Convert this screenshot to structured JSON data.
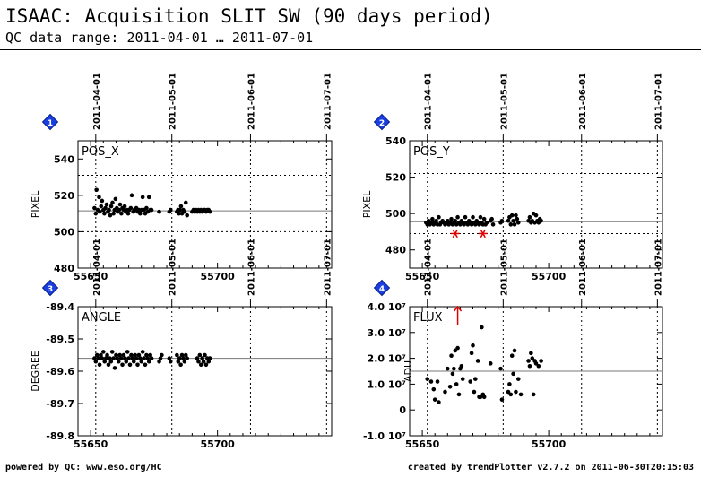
{
  "header": {
    "title": "ISAAC: Acquisition SLIT SW (90 days period)",
    "subtitle": "QC data range: 2011-04-01 … 2011-07-01"
  },
  "footer": {
    "left": "powered by QC: www.eso.org/HC",
    "right": "created by trendPlotter v2.7.2 on 2011-06-30T20:15:03"
  },
  "colors": {
    "axis": "#000000",
    "ref_line": "#777777",
    "outlier": "#e00000",
    "badge": "#1a3fe0",
    "arrow": "#e00000"
  },
  "chart_data": [
    {
      "type": "scatter",
      "panel_number": "1",
      "label": "POS_X",
      "ylabel": "PIXEL",
      "xlim": [
        55645,
        55745
      ],
      "ylim": [
        480,
        550
      ],
      "xticks": [
        55650,
        55700
      ],
      "xtick_labels": [
        "55650",
        "55700"
      ],
      "yticks": [
        480,
        500,
        520,
        540
      ],
      "ytick_labels": [
        "480",
        "500",
        "520",
        "540"
      ],
      "date_labels": [
        "2011-04-01",
        "2011-05-01",
        "2011-06-01",
        "2011-07-01"
      ],
      "date_mjd": [
        55652,
        55682,
        55713,
        55743
      ],
      "ref_line": 511.5,
      "thresholds": [
        500,
        531
      ],
      "points": [
        [
          55651.5,
          513
        ],
        [
          55652,
          510
        ],
        [
          55652.3,
          523
        ],
        [
          55652.8,
          512
        ],
        [
          55653.3,
          519
        ],
        [
          55653.6,
          511
        ],
        [
          55654.1,
          514
        ],
        [
          55654.5,
          517
        ],
        [
          55655,
          512
        ],
        [
          55655.4,
          510
        ],
        [
          55655.8,
          513
        ],
        [
          55656.3,
          515
        ],
        [
          55656.8,
          511
        ],
        [
          55657.2,
          512
        ],
        [
          55657.7,
          509
        ],
        [
          55658.1,
          514
        ],
        [
          55658.6,
          516
        ],
        [
          55659,
          510
        ],
        [
          55659.4,
          512
        ],
        [
          55659.8,
          518
        ],
        [
          55660.3,
          513
        ],
        [
          55660.7,
          511
        ],
        [
          55661.2,
          512
        ],
        [
          55661.6,
          515
        ],
        [
          55662.1,
          510
        ],
        [
          55662.5,
          513
        ],
        [
          55663,
          512
        ],
        [
          55663.4,
          514
        ],
        [
          55663.9,
          511
        ],
        [
          55664.3,
          512
        ],
        [
          55664.8,
          510
        ],
        [
          55665.2,
          512
        ],
        [
          55665.8,
          513
        ],
        [
          55666.2,
          520
        ],
        [
          55666.8,
          511
        ],
        [
          55667.2,
          512
        ],
        [
          55668,
          513
        ],
        [
          55668.5,
          511
        ],
        [
          55669,
          512
        ],
        [
          55669.5,
          510
        ],
        [
          55670,
          512
        ],
        [
          55670.5,
          519
        ],
        [
          55671,
          512
        ],
        [
          55671.5,
          510
        ],
        [
          55672,
          513
        ],
        [
          55672.5,
          511
        ],
        [
          55673,
          519
        ],
        [
          55673.5,
          512
        ],
        [
          55674,
          512
        ],
        [
          55677,
          511
        ],
        [
          55681,
          511
        ],
        [
          55681.5,
          512
        ],
        [
          55684,
          511
        ],
        [
          55684.4,
          512
        ],
        [
          55684.8,
          510
        ],
        [
          55685.2,
          512
        ],
        [
          55685.6,
          514
        ],
        [
          55686,
          510
        ],
        [
          55686.5,
          512
        ],
        [
          55687,
          511
        ],
        [
          55687.5,
          516
        ],
        [
          55688,
          509
        ],
        [
          55690,
          511
        ],
        [
          55690.5,
          512
        ],
        [
          55691,
          511
        ],
        [
          55691.5,
          512
        ],
        [
          55692,
          511
        ],
        [
          55692.5,
          512
        ],
        [
          55693,
          511
        ],
        [
          55693.5,
          512
        ],
        [
          55694,
          511
        ],
        [
          55694.5,
          512
        ],
        [
          55695,
          512
        ],
        [
          55695.5,
          511
        ],
        [
          55696,
          512
        ],
        [
          55696.5,
          512
        ],
        [
          55697,
          511
        ]
      ],
      "outliers": []
    },
    {
      "type": "scatter",
      "panel_number": "2",
      "label": "POS_Y",
      "ylabel": "PIXEL",
      "xlim": [
        55645,
        55745
      ],
      "ylim": [
        470,
        540
      ],
      "xticks": [
        55650,
        55700
      ],
      "xtick_labels": [
        "55650",
        "55700"
      ],
      "yticks": [
        480,
        500,
        520,
        540
      ],
      "ytick_labels": [
        "480",
        "500",
        "520",
        "540"
      ],
      "date_labels": [
        "2011-04-01",
        "2011-05-01",
        "2011-06-01",
        "2011-07-01"
      ],
      "date_mjd": [
        55652,
        55682,
        55713,
        55743
      ],
      "ref_line": 495.5,
      "thresholds": [
        489,
        522
      ],
      "points": [
        [
          55651.5,
          495
        ],
        [
          55652,
          494
        ],
        [
          55652.5,
          496
        ],
        [
          55653,
          494
        ],
        [
          55653.5,
          495
        ],
        [
          55654,
          497
        ],
        [
          55654.5,
          494
        ],
        [
          55655,
          495
        ],
        [
          55655.5,
          496
        ],
        [
          55656,
          494
        ],
        [
          55656.5,
          498
        ],
        [
          55657,
          494
        ],
        [
          55657.5,
          495
        ],
        [
          55658,
          496
        ],
        [
          55658.5,
          495
        ],
        [
          55659,
          494
        ],
        [
          55659.5,
          495
        ],
        [
          55660,
          496
        ],
        [
          55660.5,
          494
        ],
        [
          55661,
          495
        ],
        [
          55661.5,
          497
        ],
        [
          55662,
          494
        ],
        [
          55662.5,
          495
        ],
        [
          55663,
          496
        ],
        [
          55663.5,
          494
        ],
        [
          55664,
          498
        ],
        [
          55664.5,
          495
        ],
        [
          55665,
          494
        ],
        [
          55665.5,
          496
        ],
        [
          55666,
          495
        ],
        [
          55666.5,
          494
        ],
        [
          55667,
          498
        ],
        [
          55667.5,
          495
        ],
        [
          55668,
          494
        ],
        [
          55668.5,
          496
        ],
        [
          55669,
          495
        ],
        [
          55669.5,
          494
        ],
        [
          55670,
          498
        ],
        [
          55670.5,
          495
        ],
        [
          55671,
          494
        ],
        [
          55671.5,
          496
        ],
        [
          55672,
          495
        ],
        [
          55672.5,
          494
        ],
        [
          55673,
          498
        ],
        [
          55673.5,
          495
        ],
        [
          55674,
          494
        ],
        [
          55674.5,
          497
        ],
        [
          55675,
          494
        ],
        [
          55675.5,
          495
        ],
        [
          55677,
          496
        ],
        [
          55677.5,
          497
        ],
        [
          55678,
          494
        ],
        [
          55681,
          495
        ],
        [
          55681.5,
          496
        ],
        [
          55684,
          496
        ],
        [
          55684.5,
          498
        ],
        [
          55685,
          494
        ],
        [
          55685.5,
          499
        ],
        [
          55686,
          496
        ],
        [
          55686.5,
          494
        ],
        [
          55687,
          499
        ],
        [
          55687.5,
          497
        ],
        [
          55688,
          495
        ],
        [
          55692,
          496
        ],
        [
          55692.5,
          498
        ],
        [
          55693,
          495
        ],
        [
          55693.5,
          496
        ],
        [
          55694,
          500
        ],
        [
          55694.5,
          495
        ],
        [
          55695,
          499
        ],
        [
          55695.5,
          496
        ],
        [
          55696,
          495
        ],
        [
          55696.5,
          497
        ],
        [
          55697,
          496
        ]
      ],
      "outliers": [
        [
          55663,
          489
        ],
        [
          55674,
          489
        ]
      ]
    },
    {
      "type": "scatter",
      "panel_number": "3",
      "label": "ANGLE",
      "ylabel": "DEGREE",
      "xlim": [
        55645,
        55745
      ],
      "ylim": [
        -89.8,
        -89.4
      ],
      "xticks": [
        55650,
        55700
      ],
      "xtick_labels": [
        "55650",
        "55700"
      ],
      "yticks": [
        -89.8,
        -89.7,
        -89.6,
        -89.5,
        -89.4
      ],
      "ytick_labels": [
        "-89.8",
        "-89.7",
        "-89.6",
        "-89.5",
        "-89.4"
      ],
      "date_labels": [
        "2011-04-01",
        "2011-05-01",
        "2011-06-01",
        "2011-07-01"
      ],
      "date_mjd": [
        55652,
        55682,
        55713,
        55743
      ],
      "ref_line": -89.56,
      "thresholds": [],
      "points": [
        [
          55651.5,
          -89.56
        ],
        [
          55652,
          -89.57
        ],
        [
          55652.5,
          -89.55
        ],
        [
          55653,
          -89.56
        ],
        [
          55653.5,
          -89.58
        ],
        [
          55654,
          -89.55
        ],
        [
          55654.5,
          -89.56
        ],
        [
          55655,
          -89.54
        ],
        [
          55655.5,
          -89.57
        ],
        [
          55656,
          -89.56
        ],
        [
          55656.5,
          -89.55
        ],
        [
          55657,
          -89.58
        ],
        [
          55657.5,
          -89.56
        ],
        [
          55658,
          -89.57
        ],
        [
          55658.5,
          -89.54
        ],
        [
          55659,
          -89.56
        ],
        [
          55659.5,
          -89.59
        ],
        [
          55660,
          -89.55
        ],
        [
          55660.5,
          -89.56
        ],
        [
          55661,
          -89.57
        ],
        [
          55661.5,
          -89.55
        ],
        [
          55662,
          -89.56
        ],
        [
          55662.5,
          -89.58
        ],
        [
          55663,
          -89.55
        ],
        [
          55663.5,
          -89.56
        ],
        [
          55664,
          -89.57
        ],
        [
          55664.5,
          -89.54
        ],
        [
          55665,
          -89.56
        ],
        [
          55665.5,
          -89.58
        ],
        [
          55666,
          -89.55
        ],
        [
          55666.5,
          -89.56
        ],
        [
          55667,
          -89.57
        ],
        [
          55667.5,
          -89.55
        ],
        [
          55668,
          -89.56
        ],
        [
          55668.5,
          -89.58
        ],
        [
          55669,
          -89.55
        ],
        [
          55669.5,
          -89.56
        ],
        [
          55670,
          -89.57
        ],
        [
          55670.5,
          -89.54
        ],
        [
          55671,
          -89.56
        ],
        [
          55671.5,
          -89.58
        ],
        [
          55672,
          -89.55
        ],
        [
          55672.5,
          -89.56
        ],
        [
          55673,
          -89.57
        ],
        [
          55673.5,
          -89.55
        ],
        [
          55674,
          -89.56
        ],
        [
          55677,
          -89.57
        ],
        [
          55677.5,
          -89.56
        ],
        [
          55678,
          -89.55
        ],
        [
          55681,
          -89.56
        ],
        [
          55681.5,
          -89.57
        ],
        [
          55684,
          -89.55
        ],
        [
          55684.5,
          -89.57
        ],
        [
          55685,
          -89.56
        ],
        [
          55685.5,
          -89.58
        ],
        [
          55686,
          -89.55
        ],
        [
          55686.5,
          -89.56
        ],
        [
          55687,
          -89.57
        ],
        [
          55687.5,
          -89.55
        ],
        [
          55688,
          -89.56
        ],
        [
          55692,
          -89.56
        ],
        [
          55692.5,
          -89.57
        ],
        [
          55693,
          -89.55
        ],
        [
          55693.5,
          -89.58
        ],
        [
          55694,
          -89.56
        ],
        [
          55694.5,
          -89.57
        ],
        [
          55695,
          -89.55
        ],
        [
          55695.5,
          -89.58
        ],
        [
          55696,
          -89.56
        ],
        [
          55696.5,
          -89.57
        ],
        [
          55697,
          -89.56
        ]
      ],
      "outliers": []
    },
    {
      "type": "scatter",
      "panel_number": "4",
      "label": "FLUX",
      "ylabel": "ADU",
      "xlim": [
        55645,
        55745
      ],
      "ylim": [
        -10000000.0,
        40000000.0
      ],
      "xticks": [
        55650,
        55700
      ],
      "xtick_labels": [
        "55650",
        "55700"
      ],
      "yticks": [
        -10000000.0,
        0,
        10000000.0,
        20000000.0,
        30000000.0,
        40000000.0
      ],
      "ytick_labels": [
        "-1.0 10⁷",
        "0",
        "1.0 10⁷",
        "2.0 10⁷",
        "3.0 10⁷",
        "4.0 10⁷"
      ],
      "date_labels": [
        "2011-04-01",
        "2011-05-01",
        "2011-06-01",
        "2011-07-01"
      ],
      "date_mjd": [
        55652,
        55682,
        55713,
        55743
      ],
      "ref_line": 15000000.0,
      "thresholds": [],
      "points": [
        [
          55652,
          12000000.0
        ],
        [
          55653.5,
          11000000.0
        ],
        [
          55654.5,
          8000000.0
        ],
        [
          55655,
          4000000.0
        ],
        [
          55656,
          11000000.0
        ],
        [
          55656.5,
          3000000.0
        ],
        [
          55659,
          7000000.0
        ],
        [
          55660,
          16000000.0
        ],
        [
          55661,
          9000000.0
        ],
        [
          55661.5,
          21000000.0
        ],
        [
          55662,
          14000000.0
        ],
        [
          55662.5,
          16000000.0
        ],
        [
          55663,
          23000000.0
        ],
        [
          55663.5,
          10000000.0
        ],
        [
          55664,
          24000000.0
        ],
        [
          55664.5,
          6000000.0
        ],
        [
          55665,
          16000000.0
        ],
        [
          55665.5,
          17000000.0
        ],
        [
          55666,
          12000000.0
        ],
        [
          55669,
          11000000.0
        ],
        [
          55669.5,
          22000000.0
        ],
        [
          55670,
          25000000.0
        ],
        [
          55670.5,
          7000000.0
        ],
        [
          55671,
          12000000.0
        ],
        [
          55672,
          19000000.0
        ],
        [
          55672.5,
          5000000.0
        ],
        [
          55673,
          5000000.0
        ],
        [
          55673.5,
          32000000.0
        ],
        [
          55674,
          6000000.0
        ],
        [
          55674.5,
          5000000.0
        ],
        [
          55677,
          18000000.0
        ],
        [
          55681,
          16000000.0
        ],
        [
          55681.5,
          4000000.0
        ],
        [
          55684,
          7000000.0
        ],
        [
          55684.5,
          10000000.0
        ],
        [
          55685,
          6000000.0
        ],
        [
          55685.5,
          21000000.0
        ],
        [
          55686,
          14000000.0
        ],
        [
          55686.5,
          23000000.0
        ],
        [
          55687,
          7000000.0
        ],
        [
          55688,
          12000000.0
        ],
        [
          55689,
          6000000.0
        ],
        [
          55692,
          19000000.0
        ],
        [
          55692.5,
          17000000.0
        ],
        [
          55693,
          22000000.0
        ],
        [
          55693.5,
          20000000.0
        ],
        [
          55694,
          6000000.0
        ],
        [
          55694.5,
          19000000.0
        ],
        [
          55695,
          18000000.0
        ],
        [
          55696,
          17000000.0
        ],
        [
          55697,
          19000000.0
        ]
      ],
      "outliers": [],
      "off_scale_up": [
        55664
      ]
    }
  ]
}
